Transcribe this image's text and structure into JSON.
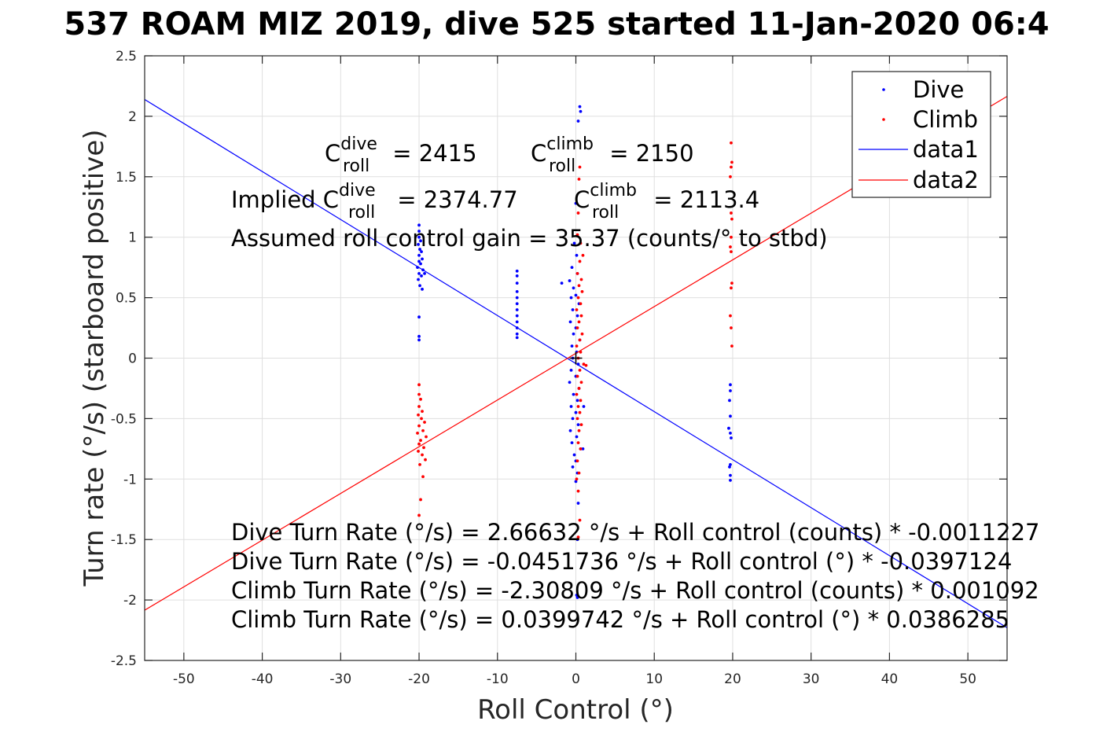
{
  "chart_data": {
    "type": "scatter",
    "title": "537 ROAM MIZ 2019, dive 525 started 11-Jan-2020 06:4",
    "xlabel": "Roll Control (°)",
    "ylabel": "Turn rate (°/s) (starboard positive)",
    "xlim": [
      -55,
      55
    ],
    "ylim": [
      -2.5,
      2.5
    ],
    "x_ticks": [
      -50,
      -40,
      -30,
      -20,
      -10,
      0,
      10,
      20,
      30,
      40,
      50
    ],
    "y_ticks": [
      2.5,
      2,
      1.5,
      1,
      0.5,
      0,
      -0.5,
      -1,
      -1.5,
      -2,
      -2.5
    ],
    "grid": true,
    "legend_position": "top-right",
    "colors": {
      "dive": "#0000ff",
      "climb": "#ff0000",
      "axes": "#262626",
      "grid": "#dfdfdf"
    },
    "series": [
      {
        "name": "Dive",
        "kind": "points",
        "color": "#0000ff",
        "points": [
          [
            -20,
            1.1
          ],
          [
            -20,
            1.05
          ],
          [
            -20,
            1.0
          ],
          [
            -19.8,
            0.97
          ],
          [
            -20.1,
            0.94
          ],
          [
            -19.9,
            0.9
          ],
          [
            -19.7,
            0.88
          ],
          [
            -20,
            0.85
          ],
          [
            -19.6,
            0.82
          ],
          [
            -20,
            0.8
          ],
          [
            -19.8,
            0.78
          ],
          [
            -20.2,
            0.75
          ],
          [
            -19.5,
            0.73
          ],
          [
            -20,
            0.7
          ],
          [
            -19.7,
            0.68
          ],
          [
            -19.3,
            0.7
          ],
          [
            -20.1,
            0.65
          ],
          [
            -19.9,
            0.6
          ],
          [
            -19.6,
            0.57
          ],
          [
            -20,
            0.34
          ],
          [
            -20,
            0.18
          ],
          [
            -20,
            0.15
          ],
          [
            -7.5,
            0.72
          ],
          [
            -7.5,
            0.68
          ],
          [
            -7.5,
            0.62
          ],
          [
            -7.5,
            0.55
          ],
          [
            -7.5,
            0.5
          ],
          [
            -7.5,
            0.45
          ],
          [
            -7.5,
            0.4
          ],
          [
            -7.5,
            0.35
          ],
          [
            -7.5,
            0.3
          ],
          [
            -7.5,
            0.25
          ],
          [
            -7.5,
            0.2
          ],
          [
            -7.5,
            0.17
          ],
          [
            0.5,
            2.08
          ],
          [
            0.6,
            2.04
          ],
          [
            0.3,
            1.96
          ],
          [
            0,
            1.28
          ],
          [
            -0.2,
            0.95
          ],
          [
            0.1,
            0.85
          ],
          [
            -0.5,
            0.75
          ],
          [
            0.2,
            0.7
          ],
          [
            -0.8,
            0.64
          ],
          [
            -1.8,
            0.62
          ],
          [
            -0.3,
            0.58
          ],
          [
            0,
            0.52
          ],
          [
            -0.6,
            0.5
          ],
          [
            0.4,
            0.45
          ],
          [
            -0.4,
            0.4
          ],
          [
            0.2,
            0.35
          ],
          [
            -0.7,
            0.3
          ],
          [
            0,
            0.25
          ],
          [
            -0.3,
            0.2
          ],
          [
            0.5,
            0.15
          ],
          [
            -0.5,
            0.1
          ],
          [
            0.1,
            0.05
          ],
          [
            -0.4,
            0.0
          ],
          [
            0.3,
            -0.05
          ],
          [
            -0.6,
            -0.1
          ],
          [
            0,
            -0.15
          ],
          [
            -0.8,
            -0.2
          ],
          [
            0.4,
            -0.25
          ],
          [
            -0.3,
            -0.3
          ],
          [
            0.2,
            -0.35
          ],
          [
            -0.6,
            -0.4
          ],
          [
            0,
            -0.45
          ],
          [
            -0.4,
            -0.5
          ],
          [
            0.3,
            -0.55
          ],
          [
            -0.7,
            -0.6
          ],
          [
            0.1,
            -0.65
          ],
          [
            -0.5,
            -0.7
          ],
          [
            0.6,
            -0.75
          ],
          [
            -0.2,
            -0.8
          ],
          [
            0,
            -0.85
          ],
          [
            -0.4,
            -0.9
          ],
          [
            0.2,
            -0.95
          ],
          [
            0,
            -1.02
          ],
          [
            0.3,
            -1.2
          ],
          [
            0.2,
            -1.5
          ],
          [
            0.1,
            -1.96
          ],
          [
            0.2,
            -1.98
          ],
          [
            1.0,
            -0.4
          ],
          [
            0.9,
            -0.75
          ],
          [
            19.7,
            -0.22
          ],
          [
            19.7,
            -0.27
          ],
          [
            19.6,
            -0.35
          ],
          [
            19.7,
            -0.48
          ],
          [
            19.5,
            -0.58
          ],
          [
            19.7,
            -0.62
          ],
          [
            19.8,
            -0.66
          ],
          [
            19.7,
            -0.88
          ],
          [
            19.6,
            -0.9
          ],
          [
            19.7,
            -0.97
          ],
          [
            19.7,
            -1.01
          ]
        ]
      },
      {
        "name": "Climb",
        "kind": "points",
        "color": "#ff0000",
        "points": [
          [
            -20,
            -0.22
          ],
          [
            -20,
            -0.3
          ],
          [
            -19.8,
            -0.34
          ],
          [
            -20,
            -0.4
          ],
          [
            -19.6,
            -0.44
          ],
          [
            -20.1,
            -0.47
          ],
          [
            -19.7,
            -0.5
          ],
          [
            -19.3,
            -0.53
          ],
          [
            -20,
            -0.56
          ],
          [
            -19.5,
            -0.6
          ],
          [
            -20.2,
            -0.62
          ],
          [
            -19.1,
            -0.65
          ],
          [
            -19.8,
            -0.68
          ],
          [
            -20,
            -0.71
          ],
          [
            -19.4,
            -0.74
          ],
          [
            -20.1,
            -0.77
          ],
          [
            -19.6,
            -0.8
          ],
          [
            -19.2,
            -0.84
          ],
          [
            -19.9,
            -0.88
          ],
          [
            -19.5,
            -0.98
          ],
          [
            -19.8,
            -1.17
          ],
          [
            -20,
            -1.3
          ],
          [
            0.5,
            1.58
          ],
          [
            0.4,
            1.48
          ],
          [
            0.3,
            1.2
          ],
          [
            0.2,
            1.02
          ],
          [
            0.6,
            0.95
          ],
          [
            0.9,
            0.85
          ],
          [
            0.5,
            0.8
          ],
          [
            0.2,
            0.7
          ],
          [
            0.7,
            0.65
          ],
          [
            0.4,
            0.6
          ],
          [
            0.8,
            0.55
          ],
          [
            0.3,
            0.5
          ],
          [
            0.6,
            0.45
          ],
          [
            0.1,
            0.4
          ],
          [
            0.7,
            0.35
          ],
          [
            0.4,
            0.3
          ],
          [
            0.2,
            0.25
          ],
          [
            0.8,
            0.2
          ],
          [
            0.5,
            0.15
          ],
          [
            0.1,
            0.1
          ],
          [
            0.6,
            0.05
          ],
          [
            0.3,
            0.0
          ],
          [
            1.0,
            -0.05
          ],
          [
            0.5,
            -0.1
          ],
          [
            0.2,
            -0.15
          ],
          [
            0.7,
            -0.2
          ],
          [
            0.4,
            -0.25
          ],
          [
            0.1,
            -0.3
          ],
          [
            0.6,
            -0.35
          ],
          [
            0.3,
            -0.4
          ],
          [
            0.5,
            -0.45
          ],
          [
            0.2,
            -0.5
          ],
          [
            0.7,
            -0.55
          ],
          [
            0.4,
            -0.6
          ],
          [
            0.3,
            -0.7
          ],
          [
            0.6,
            -0.75
          ],
          [
            0.2,
            -0.85
          ],
          [
            0.4,
            -0.95
          ],
          [
            0.1,
            -1.0
          ],
          [
            0.3,
            -1.1
          ],
          [
            1.3,
            -0.06
          ],
          [
            0.5,
            -1.34
          ],
          [
            0.3,
            -1.48
          ],
          [
            19.8,
            1.78
          ],
          [
            19.9,
            1.62
          ],
          [
            19.8,
            1.58
          ],
          [
            19.7,
            1.5
          ],
          [
            19.8,
            1.2
          ],
          [
            19.9,
            1.15
          ],
          [
            19.8,
            1.0
          ],
          [
            19.7,
            0.92
          ],
          [
            19.8,
            0.88
          ],
          [
            19.9,
            0.62
          ],
          [
            19.8,
            0.58
          ],
          [
            19.7,
            0.35
          ],
          [
            19.8,
            0.25
          ],
          [
            19.9,
            0.1
          ]
        ]
      },
      {
        "name": "data1",
        "kind": "line",
        "color": "#0000ff",
        "points": [
          [
            -55,
            2.1391
          ],
          [
            55,
            -2.2294
          ]
        ]
      },
      {
        "name": "data2",
        "kind": "line",
        "color": "#ff0000",
        "points": [
          [
            -55,
            -2.0846
          ],
          [
            55,
            2.1646
          ]
        ]
      }
    ],
    "annotations": {
      "c_dive": {
        "prefix": "C",
        "sup": "dive",
        "sub": "roll",
        "rest": " = 2415"
      },
      "c_climb": {
        "prefix": "C",
        "sup": "climb",
        "sub": "roll",
        "rest": " = 2150"
      },
      "implied_dive": {
        "prefix": "Implied C",
        "sup": "dive",
        "sub": "roll",
        "rest": " = 2374.77"
      },
      "implied_climb": {
        "prefix": "C",
        "sup": "climb",
        "sub": "roll",
        "rest": " = 2113.4"
      },
      "gain": "Assumed roll control gain = 35.37 (counts/° to stbd)",
      "equations": [
        "Dive Turn Rate (°/s) = 2.66632 °/s + Roll control (counts) * -0.0011227",
        "Dive Turn Rate (°/s) = -0.0451736 °/s + Roll control (°) * -0.0397124",
        "Climb Turn Rate (°/s) = -2.30809 °/s + Roll control (counts) * 0.001092",
        "Climb Turn Rate (°/s) = 0.0399742 °/s + Roll control (°) * 0.0386285"
      ]
    }
  }
}
